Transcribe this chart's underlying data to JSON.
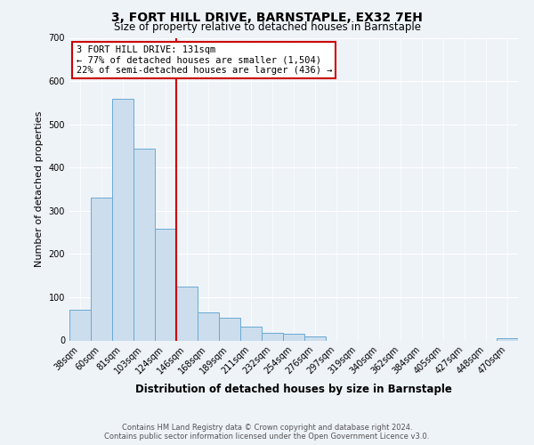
{
  "title": "3, FORT HILL DRIVE, BARNSTAPLE, EX32 7EH",
  "subtitle": "Size of property relative to detached houses in Barnstaple",
  "xlabel": "Distribution of detached houses by size in Barnstaple",
  "ylabel": "Number of detached properties",
  "footnote1": "Contains HM Land Registry data © Crown copyright and database right 2024.",
  "footnote2": "Contains public sector information licensed under the Open Government Licence v3.0.",
  "bar_labels": [
    "38sqm",
    "60sqm",
    "81sqm",
    "103sqm",
    "124sqm",
    "146sqm",
    "168sqm",
    "189sqm",
    "211sqm",
    "232sqm",
    "254sqm",
    "276sqm",
    "297sqm",
    "319sqm",
    "340sqm",
    "362sqm",
    "384sqm",
    "405sqm",
    "427sqm",
    "448sqm",
    "470sqm"
  ],
  "bar_values": [
    72,
    330,
    560,
    443,
    258,
    125,
    65,
    52,
    32,
    18,
    15,
    10,
    0,
    0,
    0,
    0,
    0,
    0,
    0,
    0,
    5
  ],
  "bar_color": "#ccdded",
  "bar_edge_color": "#6aaad4",
  "vline_pos": 4.5,
  "vline_color": "#cc0000",
  "ylim": [
    0,
    700
  ],
  "yticks": [
    0,
    100,
    200,
    300,
    400,
    500,
    600,
    700
  ],
  "annotation_text": "3 FORT HILL DRIVE: 131sqm\n← 77% of detached houses are smaller (1,504)\n22% of semi-detached houses are larger (436) →",
  "annotation_box_facecolor": "#ffffff",
  "annotation_box_edgecolor": "#cc0000",
  "background_color": "#eef3f8",
  "title_fontsize": 10,
  "subtitle_fontsize": 8.5,
  "ylabel_fontsize": 8,
  "xlabel_fontsize": 8.5,
  "tick_fontsize": 7,
  "annotation_fontsize": 7.5,
  "footnote_fontsize": 6
}
